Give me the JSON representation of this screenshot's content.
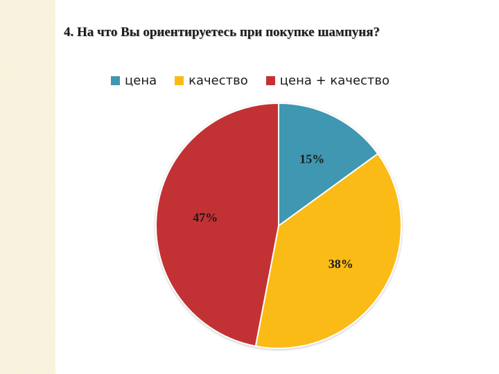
{
  "slide": {
    "title": "4. На что Вы ориентируетесь при покупке шампуня?"
  },
  "chart_data": {
    "type": "pie",
    "title": "",
    "categories": [
      "цена",
      "качество",
      "цена + качество"
    ],
    "values": [
      15,
      38,
      47
    ],
    "data_labels": [
      "15%",
      "38%",
      "47%"
    ],
    "colors": [
      "#4197b1",
      "#fbbb14",
      "#c23135"
    ],
    "legend_position": "top",
    "unit": "%"
  }
}
